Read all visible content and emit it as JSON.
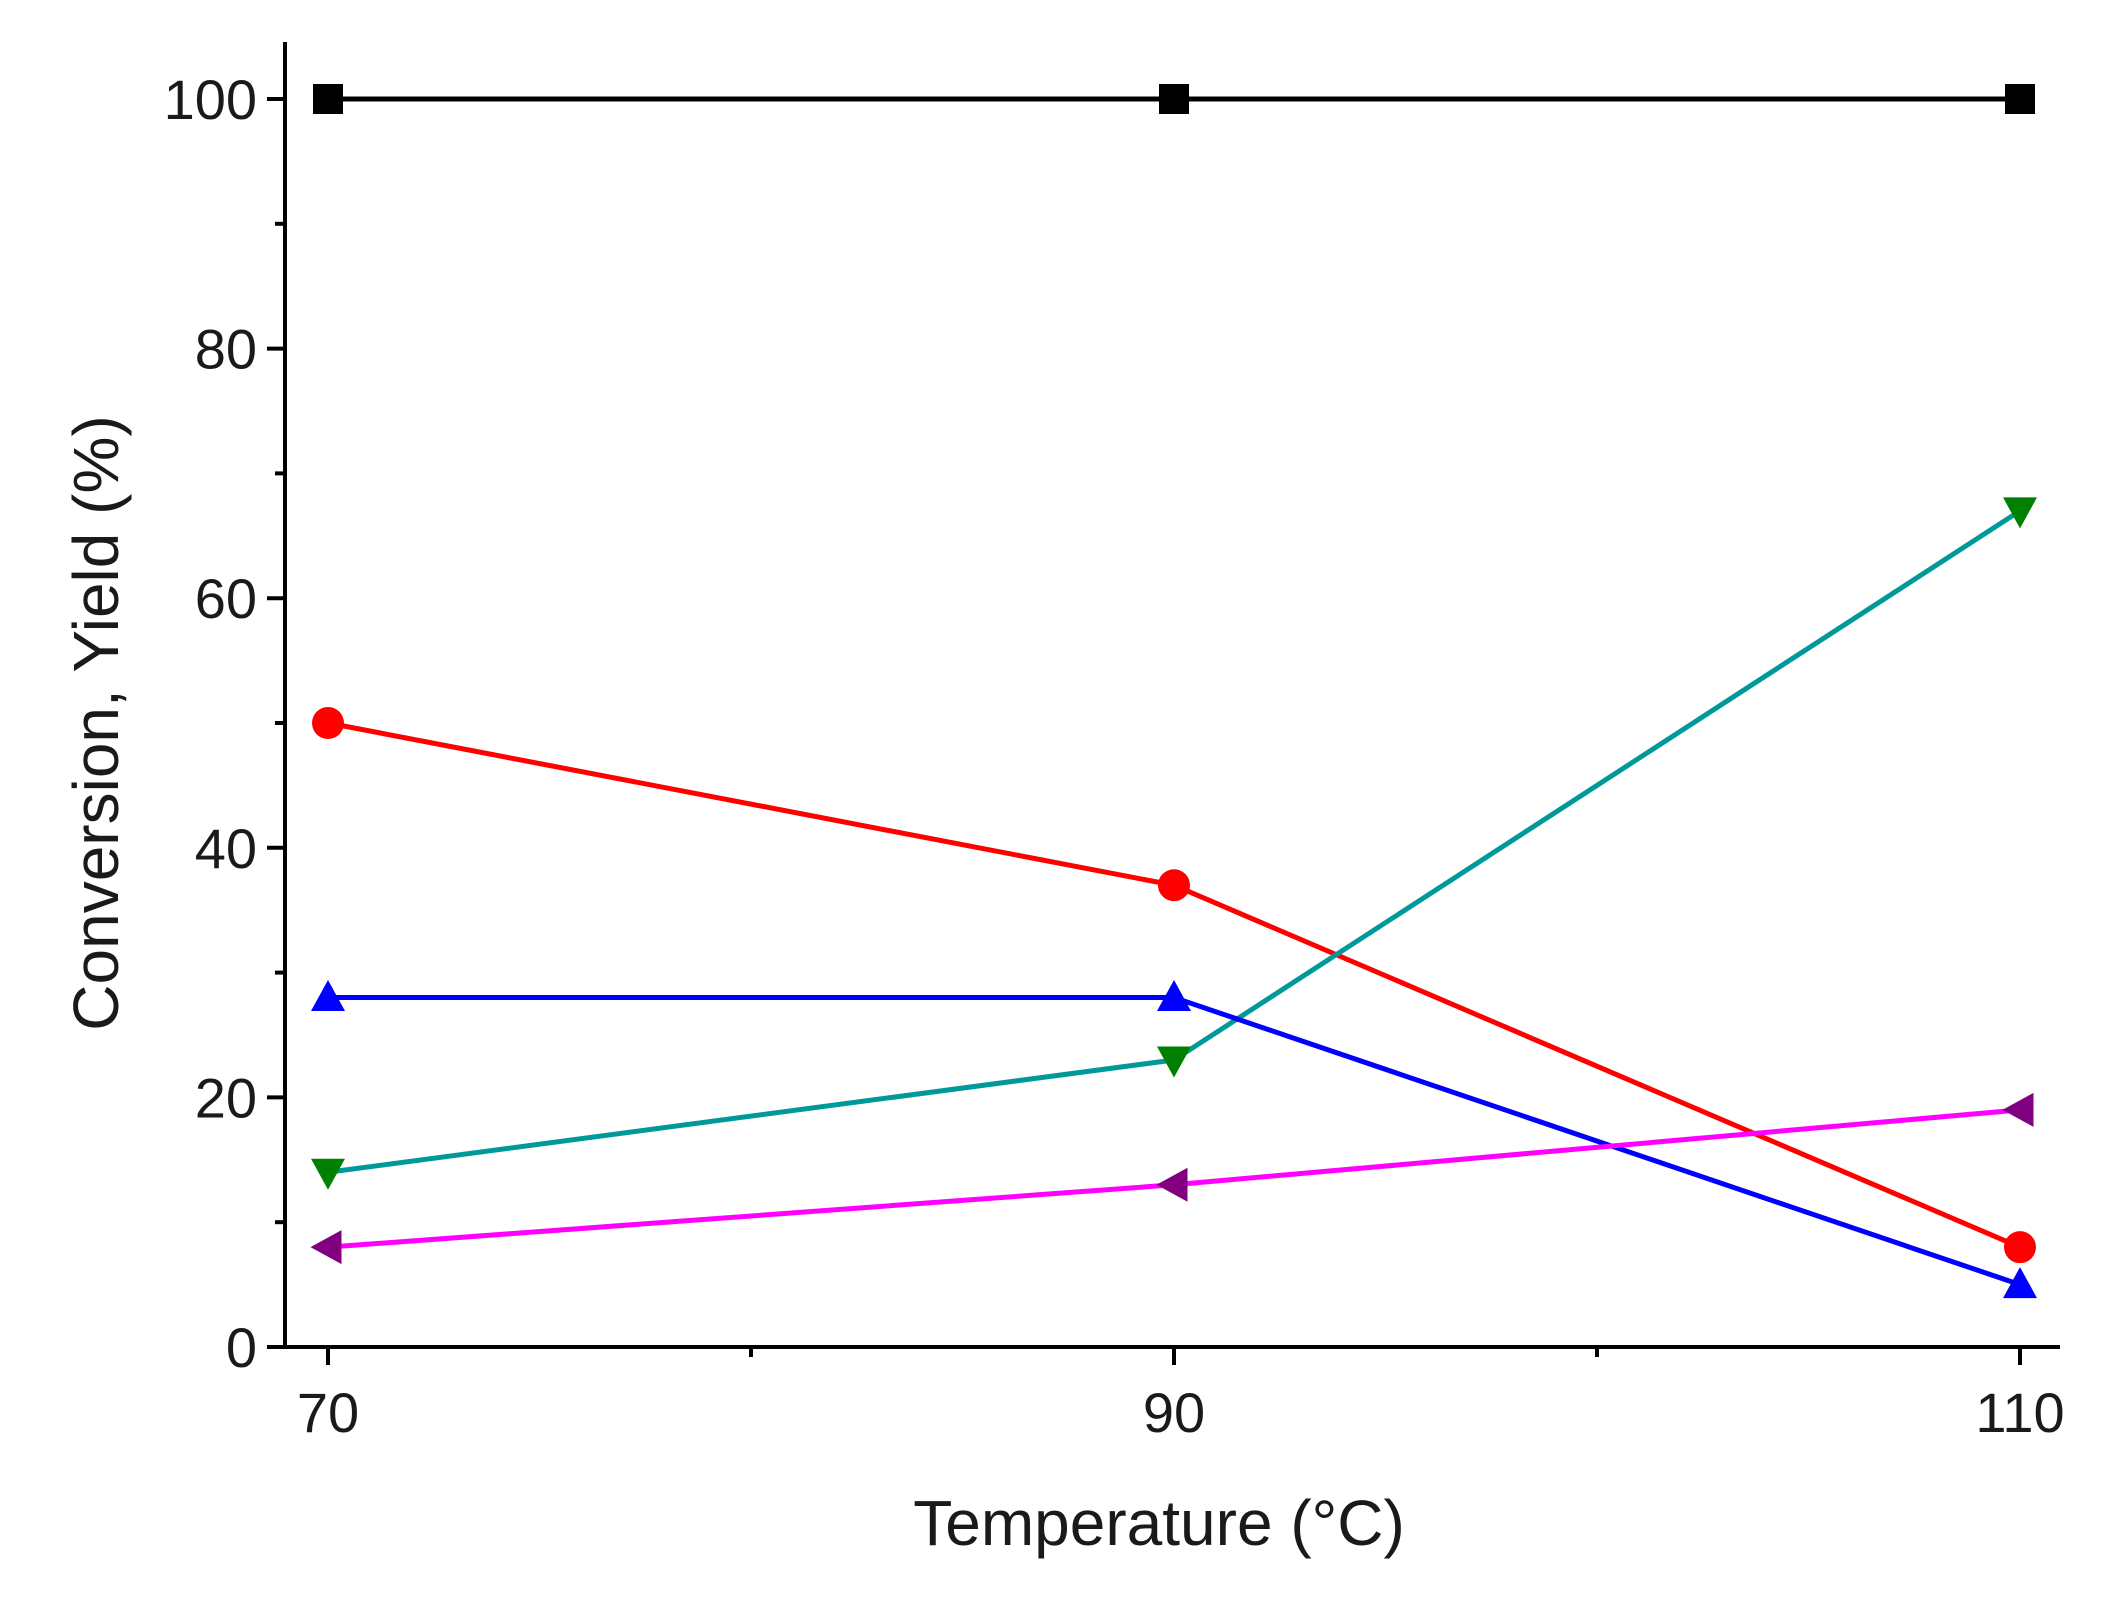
{
  "chart_data": {
    "type": "line",
    "title": "",
    "xlabel": "Temperature (°C)",
    "ylabel": "Conversion, Yield (%)",
    "x": [
      70,
      90,
      110
    ],
    "xlim": [
      69,
      110.9
    ],
    "ylim": [
      0,
      105
    ],
    "xticks": [
      70,
      90,
      110
    ],
    "xtick_labels": [
      "70",
      "90",
      "110"
    ],
    "x_minor_ticks": [
      80,
      100
    ],
    "yticks": [
      0,
      20,
      40,
      60,
      80,
      100
    ],
    "ytick_labels": [
      "0",
      "20",
      "40",
      "60",
      "80",
      "100"
    ],
    "y_minor_ticks": [
      10,
      30,
      50,
      70,
      90
    ],
    "grid": false,
    "legend": "none",
    "series": [
      {
        "name": "black-square-series",
        "values": [
          100,
          100,
          100
        ],
        "line_color": "#000000",
        "marker_color": "#000000",
        "marker": "square"
      },
      {
        "name": "red-circle-series",
        "values": [
          50,
          37,
          8
        ],
        "line_color": "#ff0000",
        "marker_color": "#ff0000",
        "marker": "circle"
      },
      {
        "name": "teal-down-triangle-series",
        "values": [
          14,
          23,
          67
        ],
        "line_color": "#009999",
        "marker_color": "#008000",
        "marker": "triangle-down"
      },
      {
        "name": "blue-up-triangle-series",
        "values": [
          28,
          28,
          5
        ],
        "line_color": "#0000ff",
        "marker_color": "#0000ff",
        "marker": "triangle-up"
      },
      {
        "name": "magenta-left-triangle-series",
        "values": [
          8,
          13,
          19
        ],
        "line_color": "#ff00ff",
        "marker_color": "#800080",
        "marker": "triangle-left"
      }
    ]
  }
}
